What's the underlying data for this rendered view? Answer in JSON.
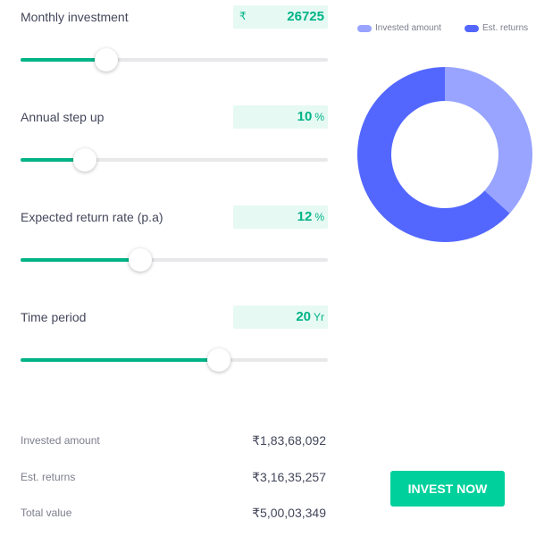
{
  "inputs": [
    {
      "label": "Monthly investment",
      "currency": "₹",
      "value": "26725",
      "unit": "",
      "slider_fraction": 0.28
    },
    {
      "label": "Annual step up",
      "currency": "",
      "value": "10",
      "unit": "%",
      "slider_fraction": 0.21
    },
    {
      "label": "Expected return rate (p.a)",
      "currency": "",
      "value": "12",
      "unit": "%",
      "slider_fraction": 0.39
    },
    {
      "label": "Time period",
      "currency": "",
      "value": "20",
      "unit": "Yr",
      "slider_fraction": 0.645
    }
  ],
  "summary": [
    {
      "label": "Invested amount",
      "value": "₹1,83,68,092"
    },
    {
      "label": "Est. returns",
      "value": "₹3,16,35,257"
    },
    {
      "label": "Total value",
      "value": "₹5,00,03,349"
    }
  ],
  "legend": {
    "invested_label": "Invested amount",
    "returns_label": "Est. returns"
  },
  "donut": {
    "invested_value": 18368092,
    "returns_value": 31635257
  },
  "colors": {
    "invested": "#98a4ff",
    "returns": "#5367ff",
    "accent": "#00d09c"
  },
  "cta_label": "INVEST NOW"
}
